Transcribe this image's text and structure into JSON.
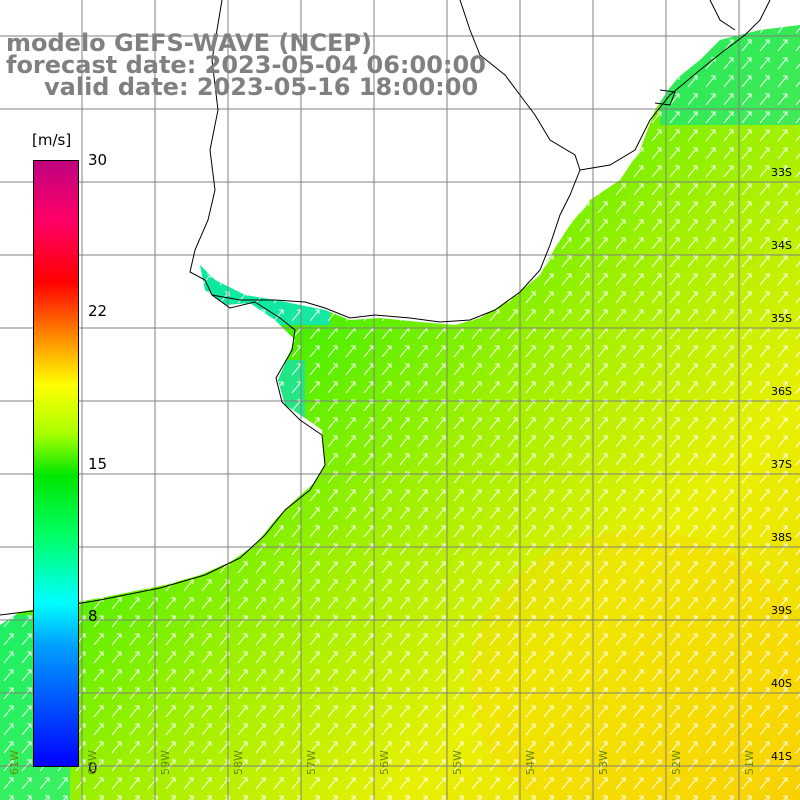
{
  "title": {
    "line1": "modelo GEFS-WAVE (NCEP)",
    "line2": "forecast date: 2023-05-04 06:00:00",
    "line3": "valid date: 2023-05-16 18:00:00"
  },
  "colorbar": {
    "unit": "[m/s]",
    "ticks": [
      "30",
      "22",
      "15",
      "8",
      "0"
    ],
    "values": [
      30,
      22,
      15,
      8,
      0
    ],
    "range": [
      0,
      30
    ]
  },
  "latitude_labels": [
    "33S",
    "34S",
    "35S",
    "36S",
    "37S",
    "38S",
    "39S",
    "40S",
    "41S"
  ],
  "longitude_labels": [
    "61W",
    "60W",
    "59W",
    "58W",
    "57W",
    "56W",
    "55W",
    "54W",
    "53W",
    "52W",
    "51W"
  ],
  "colors": {
    "land": "#ffffff",
    "coast": "#000000",
    "grid": "#808080",
    "arrow": "#ffffff",
    "title_text": "#808080"
  }
}
